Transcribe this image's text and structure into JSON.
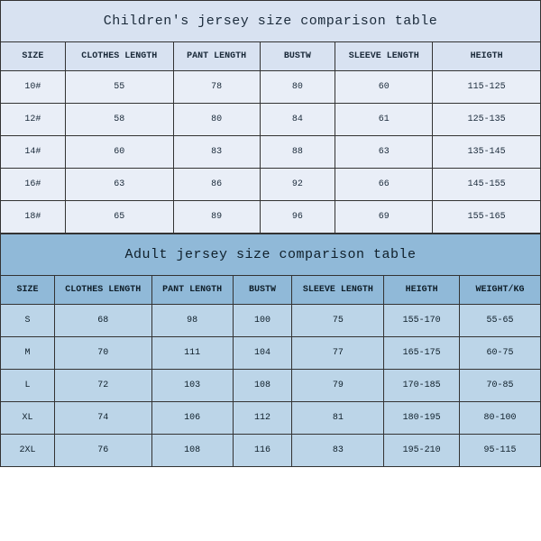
{
  "children": {
    "title": "Children's jersey size comparison table",
    "columns": [
      "SIZE",
      "CLOTHES LENGTH",
      "PANT LENGTH",
      "BUSTW",
      "SLEEVE LENGTH",
      "HEIGTH"
    ],
    "col_widths_pct": [
      12,
      20,
      16,
      14,
      18,
      20
    ],
    "rows": [
      [
        "10#",
        "55",
        "78",
        "80",
        "60",
        "115-125"
      ],
      [
        "12#",
        "58",
        "80",
        "84",
        "61",
        "125-135"
      ],
      [
        "14#",
        "60",
        "83",
        "88",
        "63",
        "135-145"
      ],
      [
        "16#",
        "63",
        "86",
        "92",
        "66",
        "145-155"
      ],
      [
        "18#",
        "65",
        "89",
        "96",
        "69",
        "155-165"
      ]
    ],
    "colors": {
      "title_bg": "#d8e2f1",
      "header_bg": "#d8e2f1",
      "row_bg": "#e9eef7",
      "border": "#333333",
      "text": "#1a2a3a"
    },
    "title_fontsize": 15,
    "header_fontsize": 10,
    "cell_fontsize": 10
  },
  "adult": {
    "title": "Adult jersey size comparison table",
    "columns": [
      "SIZE",
      "CLOTHES LENGTH",
      "PANT LENGTH",
      "BUSTW",
      "SLEEVE LENGTH",
      "HEIGTH",
      "WEIGHT/KG"
    ],
    "col_widths_pct": [
      10,
      18,
      15,
      11,
      17,
      14,
      15
    ],
    "rows": [
      [
        "S",
        "68",
        "98",
        "100",
        "75",
        "155-170",
        "55-65"
      ],
      [
        "M",
        "70",
        "111",
        "104",
        "77",
        "165-175",
        "60-75"
      ],
      [
        "L",
        "72",
        "103",
        "108",
        "79",
        "170-185",
        "70-85"
      ],
      [
        "XL",
        "74",
        "106",
        "112",
        "81",
        "180-195",
        "80-100"
      ],
      [
        "2XL",
        "76",
        "108",
        "116",
        "83",
        "195-210",
        "95-115"
      ]
    ],
    "colors": {
      "title_bg": "#90b9d8",
      "header_bg": "#90b9d8",
      "row_bg": "#bcd5e8",
      "border": "#333333",
      "text": "#0f1f2a"
    },
    "title_fontsize": 15,
    "header_fontsize": 10,
    "cell_fontsize": 10
  }
}
